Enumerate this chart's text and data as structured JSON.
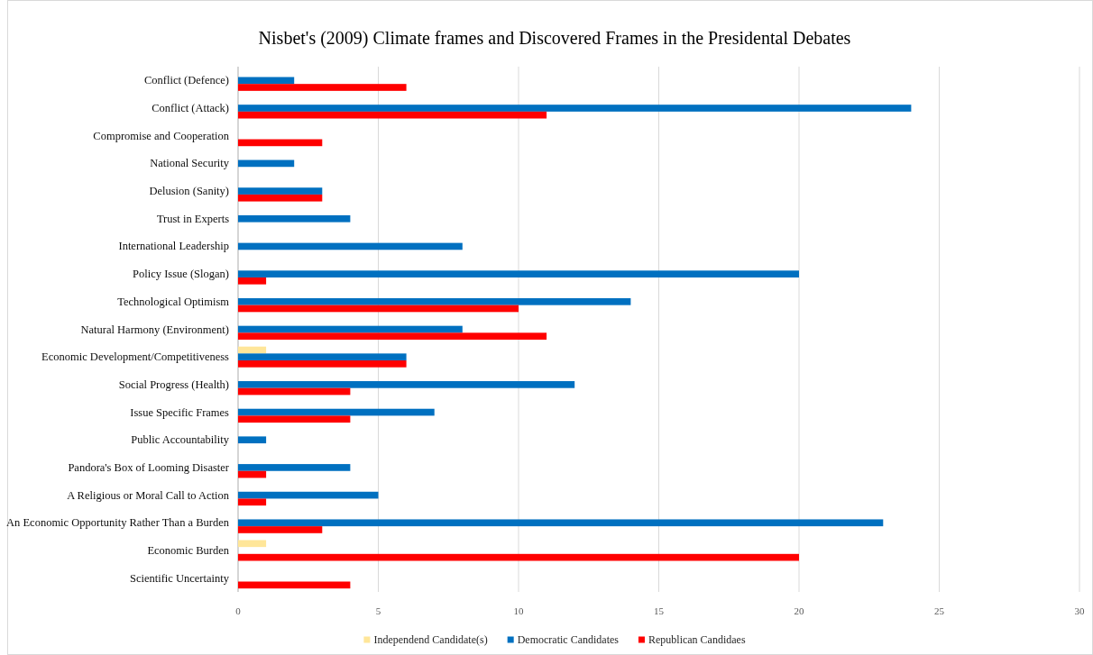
{
  "chart_data": {
    "type": "bar",
    "orientation": "horizontal",
    "title": "Nisbet's (2009) Climate frames and Discovered Frames in the Presidental Debates",
    "categories": [
      "Conflict (Defence)",
      "Conflict (Attack)",
      "Compromise and Cooperation",
      "National Security",
      "Delusion (Sanity)",
      "Trust in Experts",
      "International Leadership",
      "Policy Issue (Slogan)",
      "Technological Optimism",
      "Natural Harmony (Environment)",
      "Economic Development/Competitiveness",
      "Social Progress (Health)",
      "Issue Specific Frames",
      "Public Accountability",
      "Pandora's Box of Looming Disaster",
      "A Religious or Moral Call to Action",
      "An Economic Opportunity Rather Than a Burden",
      "Economic Burden",
      "Scientific Uncertainty"
    ],
    "series": [
      {
        "name": "Independend Candidate(s)",
        "color": "#ffe699",
        "values": [
          null,
          null,
          null,
          null,
          null,
          null,
          null,
          null,
          null,
          null,
          1,
          null,
          null,
          null,
          null,
          null,
          null,
          1,
          null
        ]
      },
      {
        "name": "Democratic Candidates",
        "color": "#0070c0",
        "values": [
          2,
          24,
          null,
          2,
          3,
          4,
          8,
          20,
          14,
          8,
          6,
          12,
          7,
          1,
          4,
          5,
          23,
          null,
          null
        ]
      },
      {
        "name": "Republican Candidaes",
        "color": "#ff0000",
        "values": [
          6,
          11,
          3,
          null,
          3,
          null,
          null,
          1,
          10,
          11,
          6,
          4,
          4,
          null,
          1,
          1,
          3,
          20,
          4
        ]
      }
    ],
    "xlim": [
      0,
      30
    ],
    "xticks": [
      0,
      5,
      10,
      15,
      20,
      25,
      30
    ],
    "grid": "x",
    "legend": "bottom"
  }
}
